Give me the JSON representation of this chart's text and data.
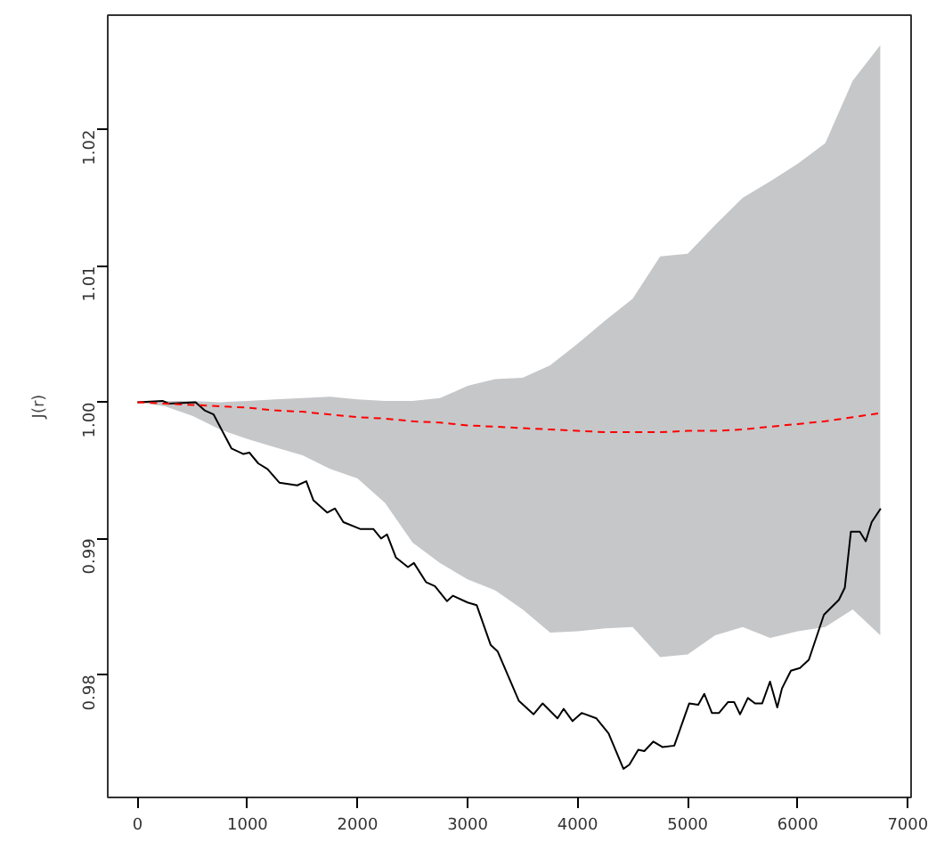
{
  "chart_data": {
    "type": "line",
    "ylabel": "J(r)",
    "xlim": [
      -270,
      7030
    ],
    "ylim": [
      0.971,
      1.0284
    ],
    "xticks": [
      0,
      1000,
      2000,
      3000,
      4000,
      5000,
      6000,
      7000
    ],
    "yticks": [
      0.98,
      0.99,
      {
        "value": 1.0,
        "label": "1.00"
      },
      1.01,
      1.02
    ],
    "grid": false,
    "marker": "none",
    "series": [
      {
        "color": "#000000",
        "line_style": "solid",
        "x": [
          0,
          228,
          284,
          528,
          610,
          692,
          855,
          963,
          1017,
          1099,
          1181,
          1289,
          1452,
          1534,
          1599,
          1724,
          1795,
          1871,
          2023,
          2143,
          2214,
          2268,
          2349,
          2458,
          2512,
          2622,
          2703,
          2812,
          2866,
          3001,
          3083,
          3209,
          3274,
          3465,
          3600,
          3682,
          3817,
          3873,
          3954,
          4036,
          4171,
          4281,
          4416,
          4470,
          4551,
          4606,
          4688,
          4770,
          4878,
          5014,
          5096,
          5151,
          5220,
          5285,
          5367,
          5422,
          5476,
          5547,
          5612,
          5677,
          5748,
          5814,
          5857,
          5938,
          6020,
          6101,
          6238,
          6374,
          6428,
          6483,
          6564,
          6618,
          6672,
          6754
        ],
        "values": [
          1.0,
          1.0001,
          0.9999,
          1.0,
          0.9994,
          0.9991,
          0.9966,
          0.9962,
          0.9963,
          0.9955,
          0.9951,
          0.9941,
          0.9939,
          0.9942,
          0.9928,
          0.9919,
          0.9922,
          0.9912,
          0.9907,
          0.9907,
          0.99,
          0.9903,
          0.9886,
          0.9879,
          0.9882,
          0.9868,
          0.9865,
          0.9854,
          0.9858,
          0.9853,
          0.9851,
          0.9822,
          0.9817,
          0.9781,
          0.9771,
          0.9779,
          0.9768,
          0.9775,
          0.9766,
          0.9772,
          0.9768,
          0.9757,
          0.9731,
          0.9734,
          0.9745,
          0.9744,
          0.9751,
          0.9747,
          0.9748,
          0.9779,
          0.9778,
          0.9786,
          0.9772,
          0.9772,
          0.978,
          0.978,
          0.9771,
          0.9783,
          0.9779,
          0.9779,
          0.9795,
          0.9776,
          0.979,
          0.9803,
          0.9805,
          0.9811,
          0.9844,
          0.9855,
          0.9864,
          0.9905,
          0.9905,
          0.9898,
          0.9912,
          0.9922
        ]
      },
      {
        "color": "#ff0000",
        "line_style": "dashed",
        "x": [
          0,
          250,
          500,
          750,
          1000,
          1250,
          1500,
          1750,
          2000,
          2250,
          2500,
          2750,
          3000,
          3250,
          3500,
          3750,
          4000,
          4250,
          4500,
          4750,
          5000,
          5250,
          5500,
          5750,
          6000,
          6250,
          6500,
          6750
        ],
        "values": [
          1.0,
          0.9999,
          0.9998,
          0.9997,
          0.9996,
          0.9994,
          0.9993,
          0.9991,
          0.9989,
          0.9988,
          0.9986,
          0.9985,
          0.9983,
          0.9982,
          0.9981,
          0.998,
          0.9979,
          0.9978,
          0.9978,
          0.9978,
          0.9979,
          0.9979,
          0.998,
          0.9982,
          0.9984,
          0.9986,
          0.9989,
          0.9992
        ],
        "lower": [
          1.0,
          0.9997,
          0.999,
          0.998,
          0.9973,
          0.9967,
          0.9961,
          0.9951,
          0.9944,
          0.9926,
          0.9897,
          0.9882,
          0.987,
          0.9862,
          0.9848,
          0.9831,
          0.9832,
          0.9834,
          0.9835,
          0.9813,
          0.9815,
          0.9829,
          0.9835,
          0.9827,
          0.9832,
          0.9835,
          0.9848,
          0.9829
        ],
        "upper": [
          1.0,
          1.0001,
          1.0001,
          1.0,
          1.0001,
          1.0002,
          1.0003,
          1.0004,
          1.0002,
          1.0001,
          1.0001,
          1.0003,
          1.0012,
          1.0017,
          1.0018,
          1.0027,
          1.0043,
          1.006,
          1.0076,
          1.0107,
          1.0109,
          1.013,
          1.015,
          1.0162,
          1.0175,
          1.019,
          1.0236,
          1.0262
        ]
      }
    ]
  }
}
